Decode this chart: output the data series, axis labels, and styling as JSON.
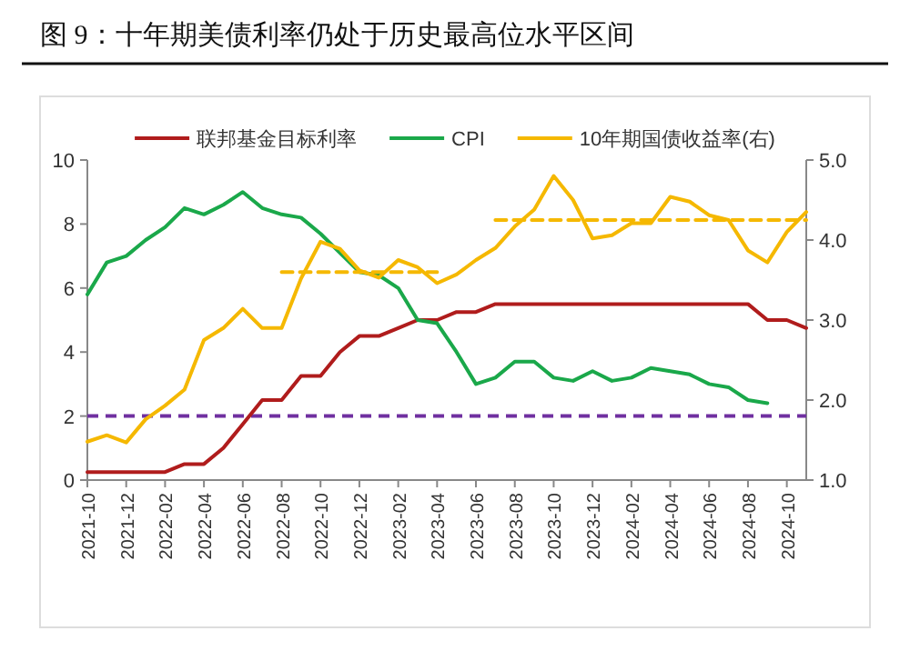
{
  "chart_data": {
    "type": "line",
    "title": "图 9：十年期美债利率仍处于历史最高位水平区间",
    "x": [
      "2021-10",
      "2021-11",
      "2021-12",
      "2022-01",
      "2022-02",
      "2022-03",
      "2022-04",
      "2022-05",
      "2022-06",
      "2022-07",
      "2022-08",
      "2022-09",
      "2022-10",
      "2022-11",
      "2022-12",
      "2023-01",
      "2023-02",
      "2023-03",
      "2023-04",
      "2023-05",
      "2023-06",
      "2023-07",
      "2023-08",
      "2023-09",
      "2023-10",
      "2023-11",
      "2023-12",
      "2024-01",
      "2024-02",
      "2024-03",
      "2024-04",
      "2024-05",
      "2024-06",
      "2024-07",
      "2024-08",
      "2024-09",
      "2024-10",
      "2024-11"
    ],
    "series": [
      {
        "name": "联邦基金目标利率",
        "color": "#b01c1c",
        "values": [
          0.25,
          0.25,
          0.25,
          0.25,
          0.25,
          0.5,
          0.5,
          1.0,
          1.75,
          2.5,
          2.5,
          3.25,
          3.25,
          4.0,
          4.5,
          4.5,
          4.75,
          5.0,
          5.0,
          5.25,
          5.25,
          5.5,
          5.5,
          5.5,
          5.5,
          5.5,
          5.5,
          5.5,
          5.5,
          5.5,
          5.5,
          5.5,
          5.5,
          5.5,
          5.5,
          5.0,
          5.0,
          4.75
        ]
      },
      {
        "name": "CPI",
        "color": "#1aa84a",
        "values": [
          5.8,
          6.8,
          7.0,
          7.5,
          7.9,
          8.5,
          8.3,
          8.6,
          9.0,
          8.5,
          8.3,
          8.2,
          7.7,
          7.1,
          6.5,
          6.4,
          6.0,
          5.0,
          4.9,
          4.0,
          3.0,
          3.2,
          3.7,
          3.7,
          3.2,
          3.1,
          3.4,
          3.1,
          3.2,
          3.5,
          3.4,
          3.3,
          3.0,
          2.9,
          2.5,
          2.4,
          null,
          null
        ]
      },
      {
        "name": "10年期国债收益率(右)",
        "color": "#f5b800",
        "axis": "y2",
        "values": [
          1.48,
          1.56,
          1.47,
          1.76,
          1.93,
          2.13,
          2.75,
          2.9,
          3.14,
          2.9,
          2.9,
          3.52,
          3.98,
          3.89,
          3.62,
          3.53,
          3.75,
          3.66,
          3.46,
          3.57,
          3.75,
          3.9,
          4.17,
          4.38,
          4.8,
          4.5,
          4.02,
          4.06,
          4.21,
          4.21,
          4.54,
          4.48,
          4.31,
          4.25,
          3.87,
          3.72,
          4.1,
          4.35
        ]
      },
      {
        "color": "#f5b800",
        "axis": "y2",
        "line_style": "dashed",
        "x": [
          "2022-08",
          "2023-04"
        ],
        "values": [
          3.6,
          3.6
        ]
      },
      {
        "color": "#f5b800",
        "axis": "y2",
        "line_style": "dashed",
        "x": [
          "2023-07",
          "2024-11"
        ],
        "values": [
          4.25,
          4.25
        ]
      }
    ],
    "ref_lines": [
      {
        "axis": "y",
        "value": 2,
        "color": "#7030a0",
        "line_style": "dashed"
      }
    ],
    "xlim": [
      "2021-10",
      "2024-11"
    ],
    "xticks": [
      "2021-10",
      "2021-12",
      "2022-02",
      "2022-04",
      "2022-06",
      "2022-08",
      "2022-10",
      "2022-12",
      "2023-02",
      "2023-04",
      "2023-06",
      "2023-08",
      "2023-10",
      "2023-12",
      "2024-02",
      "2024-04",
      "2024-06",
      "2024-08",
      "2024-10"
    ],
    "ylim": [
      0,
      10
    ],
    "yticks": [
      0,
      2,
      4,
      6,
      8,
      10
    ],
    "y2lim": [
      1,
      5
    ],
    "y2ticks": [
      {
        "value": 1,
        "label": "1.0"
      },
      {
        "value": 2,
        "label": "2.0"
      },
      {
        "value": 3,
        "label": "3.0"
      },
      {
        "value": 4,
        "label": "4.0"
      },
      {
        "value": 5,
        "label": "5.0"
      }
    ],
    "legend": "top",
    "grid": false,
    "marker": "none",
    "line_style": "solid"
  }
}
